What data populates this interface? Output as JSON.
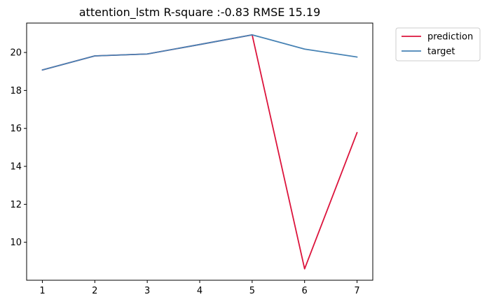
{
  "chart_data": {
    "type": "line",
    "title": "attention_lstm R-square :-0.83 RMSE 15.19",
    "xlabel": "",
    "ylabel": "",
    "x": [
      1,
      2,
      3,
      4,
      5,
      6,
      7
    ],
    "xticks": [
      "1",
      "2",
      "3",
      "4",
      "5",
      "6",
      "7"
    ],
    "yticks": [
      "10",
      "12",
      "14",
      "16",
      "18",
      "20"
    ],
    "xlim": [
      0.7,
      7.3
    ],
    "ylim": [
      8.0,
      21.55
    ],
    "grid": false,
    "legend_position": "outside-top-right",
    "series": [
      {
        "name": "prediction",
        "color": "#dc143c",
        "values": [
          19.08,
          19.82,
          19.92,
          20.42,
          20.93,
          8.6,
          15.78
        ]
      },
      {
        "name": "target",
        "color": "#4682b4",
        "values": [
          19.08,
          19.82,
          19.92,
          20.42,
          20.93,
          20.18,
          19.76
        ]
      }
    ]
  }
}
